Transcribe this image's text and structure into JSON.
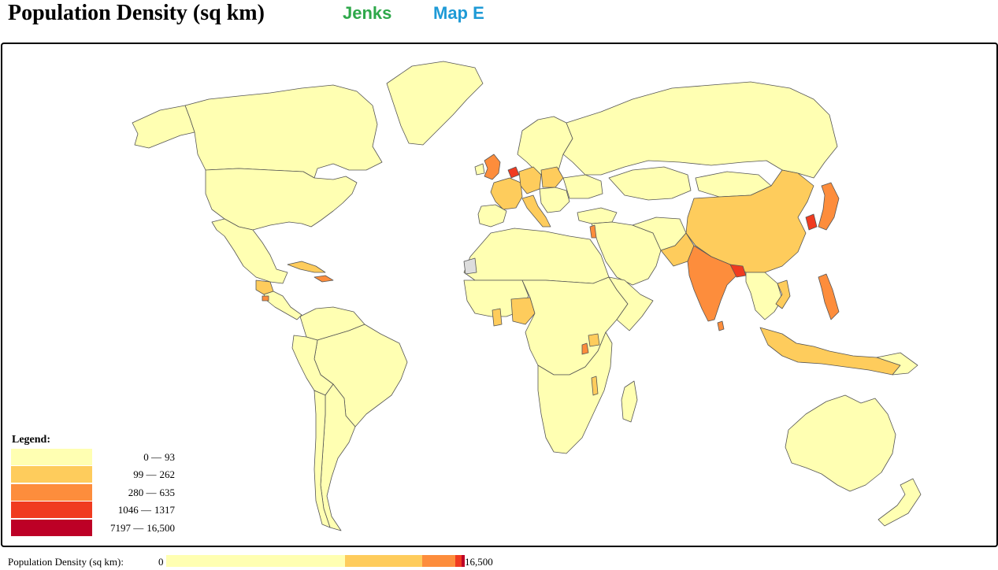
{
  "header": {
    "title": "Population Density (sq km)",
    "method": "Jenks",
    "map_name": "Map E"
  },
  "colors": {
    "class1": "#ffffb2",
    "class2": "#fecc5c",
    "class3": "#fd8d3c",
    "class4": "#f03b20",
    "class5": "#bd0026",
    "no_data": "#dddddd",
    "border": "#555555",
    "method_green": "#2ea84a",
    "mapname_blue": "#1e9ad6"
  },
  "legend": {
    "title": "Legend:",
    "classes": [
      {
        "min": "0 —",
        "max": "93",
        "color": "#ffffb2"
      },
      {
        "min": "99 —",
        "max": "262",
        "color": "#fecc5c"
      },
      {
        "min": "280 —",
        "max": "635",
        "color": "#fd8d3c"
      },
      {
        "min": "1046 —",
        "max": "1317",
        "color": "#f03b20"
      },
      {
        "min": "7197 —",
        "max": "16,500",
        "color": "#bd0026"
      }
    ]
  },
  "scale_bar": {
    "label": "Population Density (sq km):",
    "min": "0",
    "max": "16,500",
    "segments": [
      {
        "class": 1,
        "fraction": 0.6,
        "color": "#ffffb2"
      },
      {
        "class": 2,
        "fraction": 0.26,
        "color": "#fecc5c"
      },
      {
        "class": 3,
        "fraction": 0.11,
        "color": "#fd8d3c"
      },
      {
        "class": 4,
        "fraction": 0.02,
        "color": "#f03b20"
      },
      {
        "class": 5,
        "fraction": 0.01,
        "color": "#bd0026"
      }
    ]
  },
  "countries": [
    {
      "name": "Canada",
      "class": 1
    },
    {
      "name": "Alaska",
      "class": 1
    },
    {
      "name": "Greenland",
      "class": 1
    },
    {
      "name": "United States",
      "class": 1
    },
    {
      "name": "Mexico",
      "class": 1
    },
    {
      "name": "Guatemala",
      "class": 2
    },
    {
      "name": "El Salvador",
      "class": 3
    },
    {
      "name": "Cuba",
      "class": 2
    },
    {
      "name": "Haiti",
      "class": 3
    },
    {
      "name": "Brazil",
      "class": 1
    },
    {
      "name": "Argentina",
      "class": 1
    },
    {
      "name": "Chile",
      "class": 1
    },
    {
      "name": "Russia",
      "class": 1
    },
    {
      "name": "China",
      "class": 2
    },
    {
      "name": "India",
      "class": 3
    },
    {
      "name": "Bangladesh",
      "class": 4
    },
    {
      "name": "Pakistan",
      "class": 2
    },
    {
      "name": "Japan",
      "class": 3
    },
    {
      "name": "South Korea",
      "class": 4
    },
    {
      "name": "Vietnam",
      "class": 2
    },
    {
      "name": "Philippines",
      "class": 3
    },
    {
      "name": "Indonesia",
      "class": 2
    },
    {
      "name": "Australia",
      "class": 1
    },
    {
      "name": "New Zealand",
      "class": 1
    },
    {
      "name": "United Kingdom",
      "class": 3
    },
    {
      "name": "Netherlands",
      "class": 4
    },
    {
      "name": "Germany",
      "class": 2
    },
    {
      "name": "France",
      "class": 2
    },
    {
      "name": "Italy",
      "class": 2
    },
    {
      "name": "Spain",
      "class": 1
    },
    {
      "name": "Poland",
      "class": 2
    },
    {
      "name": "Ukraine",
      "class": 1
    },
    {
      "name": "Scandinavia",
      "class": 1
    },
    {
      "name": "Africa",
      "class": 1
    },
    {
      "name": "Nigeria",
      "class": 2
    },
    {
      "name": "Ghana",
      "class": 2
    },
    {
      "name": "Rwanda",
      "class": 3
    },
    {
      "name": "Malawi",
      "class": 2
    },
    {
      "name": "Uganda",
      "class": 2
    },
    {
      "name": "Israel",
      "class": 3
    },
    {
      "name": "Middle East",
      "class": 1
    },
    {
      "name": "Kazakhstan",
      "class": 1
    },
    {
      "name": "Mongolia",
      "class": 1
    },
    {
      "name": "Madagascar",
      "class": 1
    },
    {
      "name": "Sri Lanka",
      "class": 3
    },
    {
      "name": "Western Sahara",
      "class": 0
    }
  ]
}
